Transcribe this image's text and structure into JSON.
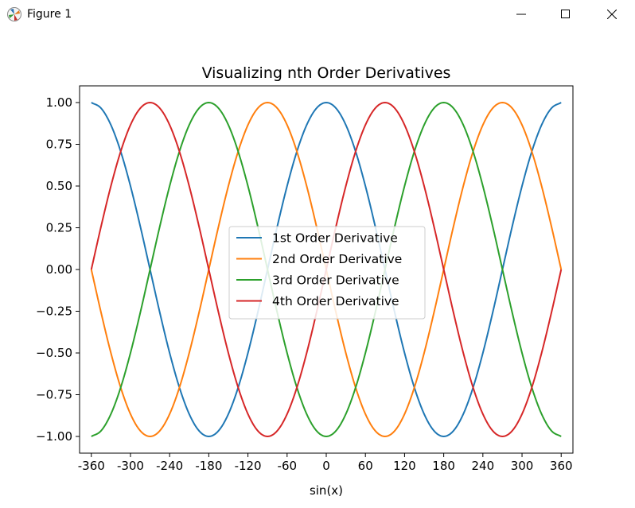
{
  "window": {
    "title": "Figure 1",
    "icon": "matplotlib-icon",
    "controls": [
      "minimize-icon",
      "maximize-icon",
      "close-icon"
    ]
  },
  "chart_data": {
    "type": "line",
    "title": "Visualizing nth Order Derivatives",
    "xlabel": "sin(x)",
    "ylabel": "",
    "xlim": [
      -378,
      378
    ],
    "ylim": [
      -1.1,
      1.1
    ],
    "grid": false,
    "legend_position": "center",
    "x_ticks": [
      -360,
      -300,
      -240,
      -180,
      -120,
      -60,
      0,
      60,
      120,
      180,
      240,
      300,
      360
    ],
    "x_tick_labels": [
      "-360",
      "-300",
      "-240",
      "-180",
      "-120",
      "-60",
      "0",
      "60",
      "120",
      "180",
      "240",
      "300",
      "360"
    ],
    "y_ticks": [
      1.0,
      0.75,
      0.5,
      0.25,
      0.0,
      -0.25,
      -0.5,
      -0.75,
      -1.0
    ],
    "y_tick_labels": [
      "1.00",
      "0.75",
      "0.50",
      "0.25",
      "0.00",
      "−0.25",
      "−0.50",
      "−0.75",
      "−1.00"
    ],
    "x": [
      -360,
      -345,
      -330,
      -315,
      -300,
      -285,
      -270,
      -255,
      -240,
      -225,
      -210,
      -195,
      -180,
      -165,
      -150,
      -135,
      -120,
      -105,
      -90,
      -75,
      -60,
      -45,
      -30,
      -15,
      0,
      15,
      30,
      45,
      60,
      75,
      90,
      105,
      120,
      135,
      150,
      165,
      180,
      195,
      210,
      225,
      240,
      255,
      270,
      285,
      300,
      315,
      330,
      345,
      360
    ],
    "series": [
      {
        "name": "1st Order Derivative",
        "color": "#1f77b4",
        "values": [
          1.0,
          0.966,
          0.866,
          0.707,
          0.5,
          0.259,
          0.0,
          -0.259,
          -0.5,
          -0.707,
          -0.866,
          -0.966,
          -1.0,
          -0.966,
          -0.866,
          -0.707,
          -0.5,
          -0.259,
          0.0,
          0.259,
          0.5,
          0.707,
          0.866,
          0.966,
          1.0,
          0.966,
          0.866,
          0.707,
          0.5,
          0.259,
          0.0,
          -0.259,
          -0.5,
          -0.707,
          -0.866,
          -0.966,
          -1.0,
          -0.966,
          -0.866,
          -0.707,
          -0.5,
          -0.259,
          0.0,
          0.259,
          0.5,
          0.707,
          0.866,
          0.966,
          1.0
        ]
      },
      {
        "name": "2nd Order Derivative",
        "color": "#ff7f0e",
        "values": [
          0.0,
          -0.259,
          -0.5,
          -0.707,
          -0.866,
          -0.966,
          -1.0,
          -0.966,
          -0.866,
          -0.707,
          -0.5,
          -0.259,
          0.0,
          0.259,
          0.5,
          0.707,
          0.866,
          0.966,
          1.0,
          0.966,
          0.866,
          0.707,
          0.5,
          0.259,
          0.0,
          -0.259,
          -0.5,
          -0.707,
          -0.866,
          -0.966,
          -1.0,
          -0.966,
          -0.866,
          -0.707,
          -0.5,
          -0.259,
          0.0,
          0.259,
          0.5,
          0.707,
          0.866,
          0.966,
          1.0,
          0.966,
          0.866,
          0.707,
          0.5,
          0.259,
          0.0
        ]
      },
      {
        "name": "3rd Order Derivative",
        "color": "#2ca02c",
        "values": [
          -1.0,
          -0.966,
          -0.866,
          -0.707,
          -0.5,
          -0.259,
          0.0,
          0.259,
          0.5,
          0.707,
          0.866,
          0.966,
          1.0,
          0.966,
          0.866,
          0.707,
          0.5,
          0.259,
          0.0,
          -0.259,
          -0.5,
          -0.707,
          -0.866,
          -0.966,
          -1.0,
          -0.966,
          -0.866,
          -0.707,
          -0.5,
          -0.259,
          0.0,
          0.259,
          0.5,
          0.707,
          0.866,
          0.966,
          1.0,
          0.966,
          0.866,
          0.707,
          0.5,
          0.259,
          0.0,
          -0.259,
          -0.5,
          -0.707,
          -0.866,
          -0.966,
          -1.0
        ]
      },
      {
        "name": "4th Order Derivative",
        "color": "#d62728",
        "values": [
          0.0,
          0.259,
          0.5,
          0.707,
          0.866,
          0.966,
          1.0,
          0.966,
          0.866,
          0.707,
          0.5,
          0.259,
          0.0,
          -0.259,
          -0.5,
          -0.707,
          -0.866,
          -0.966,
          -1.0,
          -0.966,
          -0.866,
          -0.707,
          -0.5,
          -0.259,
          0.0,
          0.259,
          0.5,
          0.707,
          0.866,
          0.966,
          1.0,
          0.966,
          0.866,
          0.707,
          0.5,
          0.259,
          0.0,
          -0.259,
          -0.5,
          -0.707,
          -0.866,
          -0.966,
          -1.0,
          -0.966,
          -0.866,
          -0.707,
          -0.5,
          -0.259,
          0.0
        ]
      }
    ]
  }
}
